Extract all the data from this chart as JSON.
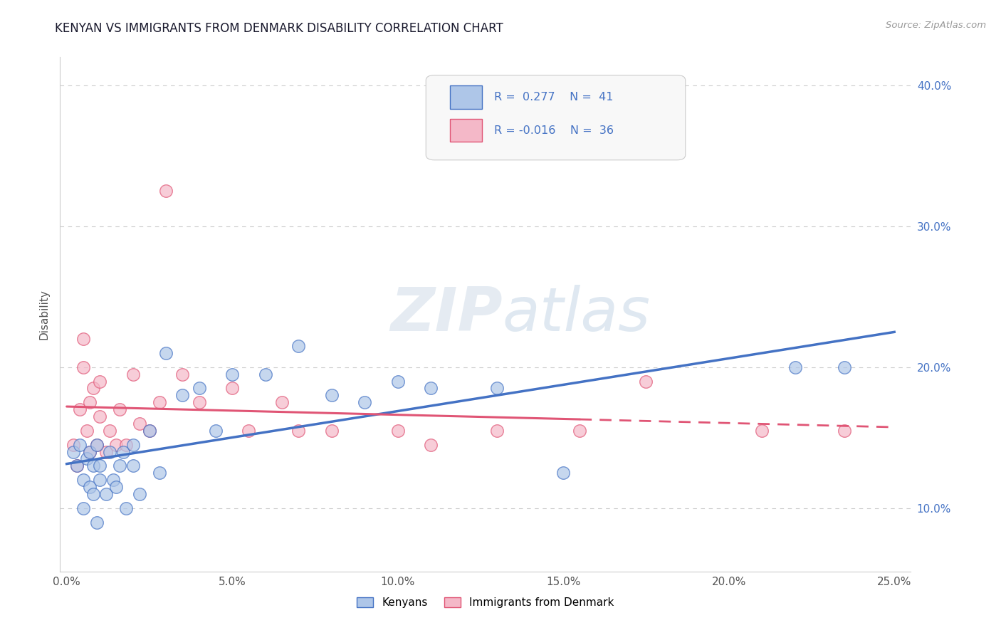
{
  "title": "KENYAN VS IMMIGRANTS FROM DENMARK DISABILITY CORRELATION CHART",
  "source": "Source: ZipAtlas.com",
  "xlim": [
    -0.002,
    0.255
  ],
  "ylim": [
    0.055,
    0.42
  ],
  "xlabel_vals": [
    0.0,
    0.05,
    0.1,
    0.15,
    0.2,
    0.25
  ],
  "xlabel_ticks": [
    "0.0%",
    "5.0%",
    "10.0%",
    "15.0%",
    "20.0%",
    "25.0%"
  ],
  "ylabel_vals": [
    0.1,
    0.2,
    0.3,
    0.4
  ],
  "ylabel_ticks": [
    "10.0%",
    "20.0%",
    "30.0%",
    "40.0%"
  ],
  "ylabel": "Disability",
  "kenyan_R": 0.277,
  "kenyan_N": 41,
  "denmark_R": -0.016,
  "denmark_N": 36,
  "kenyan_color": "#aec6e8",
  "kenyan_edge_color": "#4472c4",
  "denmark_color": "#f4b8c8",
  "denmark_edge_color": "#e05575",
  "kenyan_line_color": "#4472c4",
  "denmark_line_color": "#e05575",
  "kenyan_x": [
    0.002,
    0.003,
    0.004,
    0.005,
    0.005,
    0.006,
    0.007,
    0.007,
    0.008,
    0.008,
    0.009,
    0.009,
    0.01,
    0.01,
    0.012,
    0.013,
    0.014,
    0.015,
    0.016,
    0.017,
    0.018,
    0.02,
    0.02,
    0.022,
    0.025,
    0.028,
    0.03,
    0.035,
    0.04,
    0.045,
    0.05,
    0.06,
    0.07,
    0.08,
    0.09,
    0.1,
    0.11,
    0.13,
    0.15,
    0.22,
    0.235
  ],
  "kenyan_y": [
    0.14,
    0.13,
    0.145,
    0.12,
    0.1,
    0.135,
    0.14,
    0.115,
    0.13,
    0.11,
    0.145,
    0.09,
    0.13,
    0.12,
    0.11,
    0.14,
    0.12,
    0.115,
    0.13,
    0.14,
    0.1,
    0.145,
    0.13,
    0.11,
    0.155,
    0.125,
    0.21,
    0.18,
    0.185,
    0.155,
    0.195,
    0.195,
    0.215,
    0.18,
    0.175,
    0.19,
    0.185,
    0.185,
    0.125,
    0.2,
    0.2
  ],
  "denmark_x": [
    0.002,
    0.003,
    0.004,
    0.005,
    0.005,
    0.006,
    0.007,
    0.007,
    0.008,
    0.009,
    0.01,
    0.01,
    0.012,
    0.013,
    0.015,
    0.016,
    0.018,
    0.02,
    0.022,
    0.025,
    0.028,
    0.03,
    0.035,
    0.04,
    0.05,
    0.055,
    0.065,
    0.07,
    0.08,
    0.1,
    0.11,
    0.13,
    0.155,
    0.175,
    0.21,
    0.235
  ],
  "denmark_y": [
    0.145,
    0.13,
    0.17,
    0.22,
    0.2,
    0.155,
    0.175,
    0.14,
    0.185,
    0.145,
    0.19,
    0.165,
    0.14,
    0.155,
    0.145,
    0.17,
    0.145,
    0.195,
    0.16,
    0.155,
    0.175,
    0.325,
    0.195,
    0.175,
    0.185,
    0.155,
    0.175,
    0.155,
    0.155,
    0.155,
    0.145,
    0.155,
    0.155,
    0.19,
    0.155,
    0.155
  ],
  "watermark_zip": "ZIP",
  "watermark_atlas": "atlas",
  "legend_text_color": "#4472c4"
}
